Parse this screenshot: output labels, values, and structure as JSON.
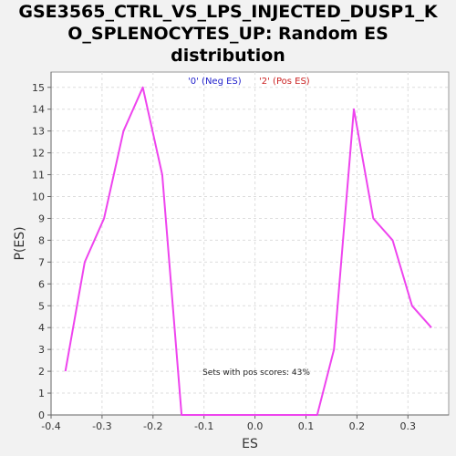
{
  "chart_data": {
    "type": "line",
    "title_lines": [
      "GSE3565_CTRL_VS_LPS_INJECTED_DUSP1_K",
      "O_SPLENOCYTES_UP: Random ES",
      "distribution"
    ],
    "xlabel": "ES",
    "ylabel": "P(ES)",
    "xlim": [
      -0.4,
      0.38
    ],
    "ylim": [
      0,
      15.7
    ],
    "x_ticks": [
      -0.4,
      -0.3,
      -0.2,
      -0.1,
      0.0,
      0.1,
      0.2,
      0.3
    ],
    "x_tick_labels": [
      "-0.4",
      "-0.3",
      "-0.2",
      "-0.1",
      "0.0",
      "0.1",
      "0.2",
      "0.3"
    ],
    "y_ticks": [
      0,
      1,
      2,
      3,
      4,
      5,
      6,
      7,
      8,
      9,
      10,
      11,
      12,
      13,
      14,
      15
    ],
    "y_tick_labels": [
      "0",
      "1",
      "2",
      "3",
      "4",
      "5",
      "6",
      "7",
      "8",
      "9",
      "10",
      "11",
      "12",
      "13",
      "14",
      "15"
    ],
    "grid": true,
    "legend": [
      {
        "label": "'0' (Neg ES)",
        "color": "#2222cc"
      },
      {
        "label": "'2' (Pos ES)",
        "color": "#cc2222"
      }
    ],
    "annotation": "Sets with pos scores: 43%",
    "series": [
      {
        "color": "#ee44ee",
        "x": [
          -0.372,
          -0.334,
          -0.296,
          -0.258,
          -0.22,
          -0.182,
          -0.144,
          -0.106,
          -0.068,
          -0.03,
          0.008,
          0.046,
          0.084,
          0.122,
          0.155,
          0.194,
          0.232,
          0.27,
          0.308,
          0.346
        ],
        "y": [
          2,
          7,
          9,
          13,
          15,
          11,
          0,
          0,
          0,
          0,
          0,
          0,
          0,
          0,
          3,
          14,
          9,
          8,
          5,
          4
        ]
      }
    ]
  }
}
